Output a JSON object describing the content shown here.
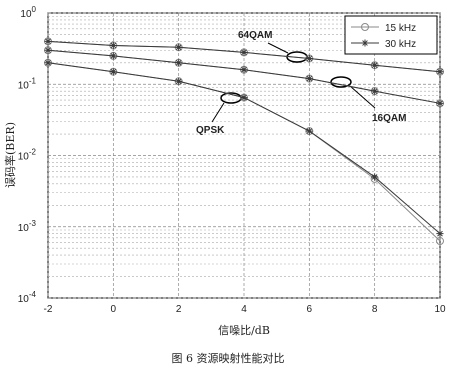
{
  "chart_data": {
    "type": "line",
    "log_y": true,
    "grid": true,
    "xlabel": "信噪比/dB",
    "ylabel": "误码率(BER)",
    "caption": "图 6 资源映射性能对比",
    "x": [
      -2,
      0,
      2,
      4,
      6,
      8,
      10
    ],
    "xlim": [
      -2,
      10
    ],
    "xticks": [
      -2,
      0,
      2,
      4,
      6,
      8,
      10
    ],
    "ylim": [
      0.0001,
      1
    ],
    "yticks": [
      {
        "value": 0.0001,
        "label": "10",
        "exponent": "-4"
      },
      {
        "value": 0.001,
        "label": "10",
        "exponent": "-3"
      },
      {
        "value": 0.01,
        "label": "10",
        "exponent": "-2"
      },
      {
        "value": 0.1,
        "label": "10",
        "exponent": "-1"
      },
      {
        "value": 1,
        "label": "10",
        "exponent": "0"
      }
    ],
    "annotations": [
      "64QAM",
      "16QAM",
      "QPSK"
    ],
    "series": [
      {
        "name": "15 kHz",
        "color": "#8a8a8a",
        "marker": "circle",
        "curves": [
          [
            0.4,
            0.35,
            0.33,
            0.28,
            0.23,
            0.185,
            0.15
          ],
          [
            0.3,
            0.25,
            0.2,
            0.16,
            0.12,
            0.08,
            0.054
          ],
          [
            0.2,
            0.15,
            0.11,
            0.065,
            0.022,
            0.0047,
            0.00063
          ]
        ]
      },
      {
        "name": "30 kHz",
        "color": "#3a3a3a",
        "marker": "star",
        "curves": [
          [
            0.4,
            0.35,
            0.33,
            0.28,
            0.23,
            0.185,
            0.15
          ],
          [
            0.3,
            0.25,
            0.2,
            0.16,
            0.12,
            0.08,
            0.054
          ],
          [
            0.2,
            0.15,
            0.11,
            0.065,
            0.022,
            0.005,
            0.0008
          ]
        ]
      }
    ]
  }
}
